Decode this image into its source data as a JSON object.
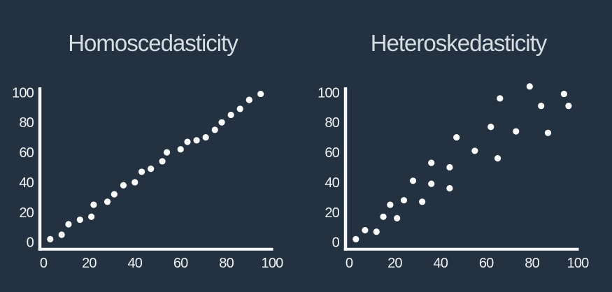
{
  "colors": {
    "background": "#233140",
    "title": "#d6dde3",
    "axis": "#f5f7f8",
    "tick_labels": "#eef1f3",
    "dot": "#fdfeff"
  },
  "chart_data": [
    {
      "type": "scatter",
      "title": "Homoscedasticity",
      "xlabel": "",
      "ylabel": "",
      "xlim": [
        0,
        100
      ],
      "ylim": [
        0,
        100
      ],
      "xticks": [
        0,
        20,
        40,
        60,
        80,
        100
      ],
      "yticks": [
        0,
        20,
        40,
        60,
        80,
        100
      ],
      "grid": false,
      "legend": null,
      "marker": {
        "shape": "circle",
        "color": "#fdfeff",
        "radius_px": 4.6
      },
      "points": [
        [
          3,
          2
        ],
        [
          8,
          5
        ],
        [
          11,
          12
        ],
        [
          16,
          15
        ],
        [
          21,
          17
        ],
        [
          22,
          25
        ],
        [
          28,
          27
        ],
        [
          31,
          32
        ],
        [
          35,
          38
        ],
        [
          40,
          40
        ],
        [
          43,
          47
        ],
        [
          47,
          49
        ],
        [
          52,
          54
        ],
        [
          54,
          60
        ],
        [
          60,
          62
        ],
        [
          63,
          67
        ],
        [
          67,
          68
        ],
        [
          71,
          70
        ],
        [
          75,
          75
        ],
        [
          78,
          80
        ],
        [
          82,
          85
        ],
        [
          86,
          89
        ],
        [
          90,
          95
        ],
        [
          95,
          99
        ]
      ]
    },
    {
      "type": "scatter",
      "title": "Heteroskedasticity",
      "xlabel": "",
      "ylabel": "",
      "xlim": [
        0,
        100
      ],
      "ylim": [
        0,
        100
      ],
      "xticks": [
        0,
        20,
        40,
        60,
        80,
        100
      ],
      "yticks": [
        0,
        20,
        40,
        60,
        80,
        100
      ],
      "grid": false,
      "legend": null,
      "marker": {
        "shape": "circle",
        "color": "#fdfeff",
        "radius_px": 4.6
      },
      "points": [
        [
          3,
          2
        ],
        [
          7,
          8
        ],
        [
          12,
          7
        ],
        [
          15,
          17
        ],
        [
          18,
          25
        ],
        [
          21,
          16
        ],
        [
          24,
          28
        ],
        [
          28,
          41
        ],
        [
          32,
          27
        ],
        [
          36,
          39
        ],
        [
          36,
          53
        ],
        [
          44,
          36
        ],
        [
          44,
          50
        ],
        [
          47,
          70
        ],
        [
          55,
          61
        ],
        [
          62,
          77
        ],
        [
          65,
          56
        ],
        [
          66,
          96
        ],
        [
          73,
          74
        ],
        [
          79,
          104
        ],
        [
          84,
          91
        ],
        [
          87,
          73
        ],
        [
          94,
          99
        ],
        [
          96,
          91
        ]
      ]
    }
  ]
}
